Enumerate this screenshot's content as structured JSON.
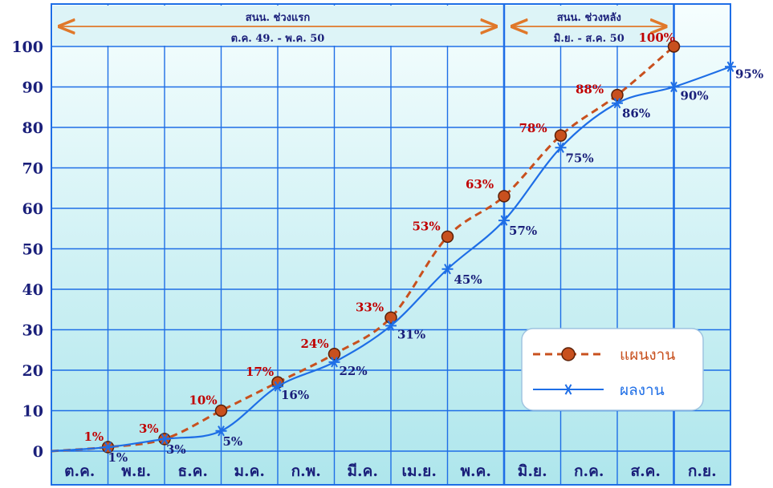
{
  "chart_data": {
    "type": "line",
    "categories": [
      "ต.ค.",
      "พ.ย.",
      "ธ.ค.",
      "ม.ค.",
      "ก.พ.",
      "มี.ค.",
      "เม.ย.",
      "พ.ค.",
      "มิ.ย.",
      "ก.ค.",
      "ส.ค.",
      "ก.ย."
    ],
    "y_ticks": [
      "0",
      "10",
      "20",
      "30",
      "40",
      "50",
      "60",
      "70",
      "80",
      "90",
      "100"
    ],
    "ylim": [
      0,
      100
    ],
    "grid": true,
    "legend_position": "bottom-right",
    "series": [
      {
        "name": "แผนงาน",
        "color": "#c8501e",
        "style": "dashed",
        "marker": "circle",
        "x": [
          0,
          1,
          2,
          3,
          4,
          5,
          6,
          7,
          8,
          9,
          10,
          11
        ],
        "values": [
          0,
          1,
          3,
          10,
          17,
          24,
          33,
          53,
          63,
          78,
          88,
          100
        ],
        "labels": [
          "1%",
          "3%",
          "10%",
          "17%",
          "24%",
          "33%",
          "53%",
          "63%",
          "78%",
          "88%",
          "100%"
        ]
      },
      {
        "name": "ผลงาน",
        "color": "#1e6ee6",
        "style": "solid",
        "marker": "asterisk",
        "x": [
          0,
          1,
          2,
          3,
          4,
          5,
          6,
          7,
          8,
          9,
          10,
          11,
          12
        ],
        "values": [
          0,
          1,
          3,
          5,
          16,
          22,
          31,
          45,
          57,
          75,
          86,
          90,
          95
        ],
        "labels": [
          "1%",
          "3%",
          "5%",
          "16%",
          "22%",
          "31%",
          "45%",
          "57%",
          "75%",
          "86%",
          "90%",
          "95%"
        ]
      }
    ],
    "phases": [
      {
        "title": "สนน. ช่วงแรก",
        "subtitle": "ต.ค. 49. - พ.ค. 50"
      },
      {
        "title": "สนน. ช่วงหลัง",
        "subtitle": "มิ.ย. - ส.ค. 50"
      }
    ]
  },
  "colors": {
    "plot_bg": "#bfeaf0",
    "grid": "#1e6ee6",
    "plan": "#c8501e",
    "actual": "#1e6ee6",
    "axis_text": "#1a1f7a",
    "plan_text": "#c00000"
  }
}
